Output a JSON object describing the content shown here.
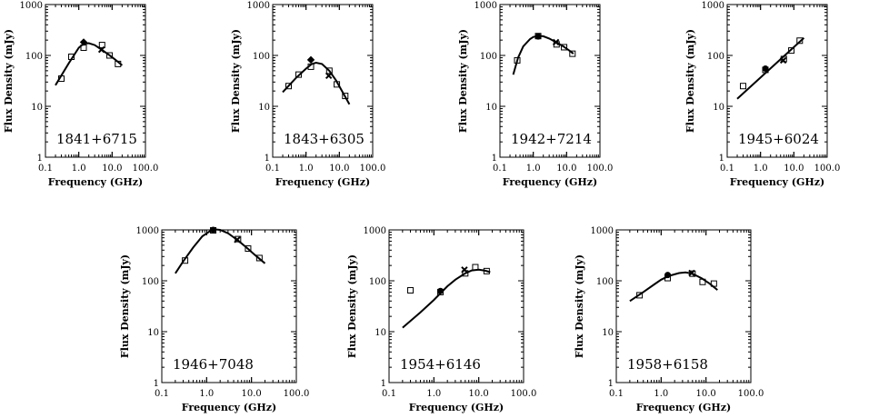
{
  "chart_data": [
    {
      "type": "scatter",
      "source": "1841+6715",
      "xlabel": "Frequency (GHz)",
      "ylabel": "Flux Density (mJy)",
      "x_scale": "log",
      "y_scale": "log",
      "xlim": [
        0.1,
        100.0
      ],
      "ylim": [
        1,
        1000
      ],
      "x_ticks": [
        "0.1",
        "1.0",
        "10.0",
        "100.0"
      ],
      "y_ticks": [
        "1",
        "10",
        "100",
        "1000"
      ],
      "fit_curve": [
        [
          0.2,
          26
        ],
        [
          0.5,
          70
        ],
        [
          1.0,
          142
        ],
        [
          1.4,
          170
        ],
        [
          2.0,
          174
        ],
        [
          3.0,
          160
        ],
        [
          5.0,
          128
        ],
        [
          8.0,
          103
        ],
        [
          12.0,
          84
        ],
        [
          20.0,
          64
        ]
      ],
      "markers": [
        {
          "shape": "square",
          "points": [
            [
              0.3,
              35
            ],
            [
              0.6,
              94
            ],
            [
              1.4,
              142
            ],
            [
              5.0,
              160
            ],
            [
              8.4,
              100
            ],
            [
              15.0,
              68
            ]
          ]
        },
        {
          "shape": "diamond",
          "points": [
            [
              1.4,
              182
            ]
          ]
        },
        {
          "shape": "cross",
          "points": [
            [
              4.8,
              130
            ]
          ]
        }
      ]
    },
    {
      "type": "scatter",
      "source": "1843+6305",
      "xlabel": "Frequency (GHz)",
      "ylabel": "Flux Density (mJy)",
      "x_scale": "log",
      "y_scale": "log",
      "xlim": [
        0.1,
        100.0
      ],
      "ylim": [
        1,
        1000
      ],
      "x_ticks": [
        "0.1",
        "1.0",
        "10.0",
        "100.0"
      ],
      "y_ticks": [
        "1",
        "10",
        "100",
        "1000"
      ],
      "fit_curve": [
        [
          0.2,
          19
        ],
        [
          0.5,
          36
        ],
        [
          1.0,
          55
        ],
        [
          1.5,
          68
        ],
        [
          2.0,
          72
        ],
        [
          3.0,
          68
        ],
        [
          5.0,
          50
        ],
        [
          8.0,
          32
        ],
        [
          12.0,
          20
        ],
        [
          20.0,
          11
        ]
      ],
      "markers": [
        {
          "shape": "square",
          "points": [
            [
              0.3,
              25
            ],
            [
              0.6,
              42
            ],
            [
              1.4,
              60
            ],
            [
              5.0,
              50
            ],
            [
              8.4,
              27
            ],
            [
              15.0,
              16
            ]
          ]
        },
        {
          "shape": "diamond",
          "points": [
            [
              1.4,
              82
            ]
          ]
        },
        {
          "shape": "cross",
          "points": [
            [
              4.8,
              40
            ]
          ]
        }
      ]
    },
    {
      "type": "scatter",
      "source": "1942+7214",
      "xlabel": "Frequency (GHz)",
      "ylabel": "Flux Density (mJy)",
      "x_scale": "log",
      "y_scale": "log",
      "xlim": [
        0.1,
        100.0
      ],
      "ylim": [
        1,
        1000
      ],
      "x_ticks": [
        "0.1",
        "1.0",
        "10.0",
        "100.0"
      ],
      "y_ticks": [
        "1",
        "10",
        "100",
        "1000"
      ],
      "fit_curve": [
        [
          0.25,
          42
        ],
        [
          0.35,
          90
        ],
        [
          0.5,
          150
        ],
        [
          0.8,
          210
        ],
        [
          1.0,
          230
        ],
        [
          1.5,
          242
        ],
        [
          2.0,
          238
        ],
        [
          3.0,
          215
        ],
        [
          5.0,
          180
        ],
        [
          8.0,
          150
        ],
        [
          12.0,
          125
        ],
        [
          16.0,
          108
        ]
      ],
      "markers": [
        {
          "shape": "square",
          "points": [
            [
              0.33,
              80
            ],
            [
              1.4,
              240
            ],
            [
              5.0,
              165
            ],
            [
              8.4,
              145
            ],
            [
              15.0,
              108
            ]
          ]
        },
        {
          "shape": "circle",
          "points": [
            [
              1.4,
              236
            ]
          ]
        },
        {
          "shape": "cross",
          "points": [
            [
              4.8,
              182
            ]
          ]
        }
      ]
    },
    {
      "type": "scatter",
      "source": "1945+6024",
      "xlabel": "Frequency (GHz)",
      "ylabel": "Flux Density (mJy)",
      "x_scale": "log",
      "y_scale": "log",
      "xlim": [
        0.1,
        100.0
      ],
      "ylim": [
        1,
        1000
      ],
      "x_ticks": [
        "0.1",
        "1.0",
        "10.0",
        "100.0"
      ],
      "y_ticks": [
        "1",
        "10",
        "100",
        "1000"
      ],
      "fit_curve": [
        [
          0.2,
          14
        ],
        [
          20.0,
          220
        ]
      ],
      "markers": [
        {
          "shape": "square",
          "points": [
            [
              0.3,
              25
            ],
            [
              1.4,
              52
            ],
            [
              5.0,
              85
            ],
            [
              8.4,
              125
            ],
            [
              15.0,
              195
            ]
          ]
        },
        {
          "shape": "circle",
          "points": [
            [
              1.4,
              55
            ]
          ]
        },
        {
          "shape": "cross",
          "points": [
            [
              4.8,
              80
            ]
          ]
        }
      ]
    },
    {
      "type": "scatter",
      "source": "1946+7048",
      "xlabel": "Frequency (GHz)",
      "ylabel": "Flux Density (mJy)",
      "x_scale": "log",
      "y_scale": "log",
      "xlim": [
        0.1,
        100.0
      ],
      "ylim": [
        1,
        1000
      ],
      "x_ticks": [
        "0.1",
        "1.0",
        "10.0",
        "100.0"
      ],
      "y_ticks": [
        "1",
        "10",
        "100",
        "1000"
      ],
      "fit_curve": [
        [
          0.2,
          140
        ],
        [
          0.3,
          240
        ],
        [
          0.5,
          450
        ],
        [
          0.8,
          750
        ],
        [
          1.2,
          950
        ],
        [
          1.6,
          1020
        ],
        [
          2.0,
          1000
        ],
        [
          3.0,
          860
        ],
        [
          5.0,
          620
        ],
        [
          8.0,
          440
        ],
        [
          12.0,
          320
        ],
        [
          20.0,
          220
        ]
      ],
      "markers": [
        {
          "shape": "square",
          "points": [
            [
              0.33,
              250
            ],
            [
              1.4,
              980
            ],
            [
              5.0,
              660
            ],
            [
              8.4,
              430
            ],
            [
              15.0,
              280
            ]
          ]
        },
        {
          "shape": "circle",
          "points": [
            [
              1.4,
              1000
            ]
          ]
        },
        {
          "shape": "cross",
          "points": [
            [
              4.8,
              640
            ]
          ]
        }
      ]
    },
    {
      "type": "scatter",
      "source": "1954+6146",
      "xlabel": "Frequency (GHz)",
      "ylabel": "Flux Density (mJy)",
      "x_scale": "log",
      "y_scale": "log",
      "xlim": [
        0.1,
        100.0
      ],
      "ylim": [
        1,
        1000
      ],
      "x_ticks": [
        "0.1",
        "1.0",
        "10.0",
        "100.0"
      ],
      "y_ticks": [
        "1",
        "10",
        "100",
        "1000"
      ],
      "fit_curve": [
        [
          0.2,
          12
        ],
        [
          0.5,
          24
        ],
        [
          1.0,
          42
        ],
        [
          2.0,
          78
        ],
        [
          3.0,
          105
        ],
        [
          5.0,
          140
        ],
        [
          7.0,
          160
        ],
        [
          10.0,
          165
        ],
        [
          14.0,
          158
        ],
        [
          18.0,
          148
        ]
      ],
      "markers": [
        {
          "shape": "square",
          "points": [
            [
              0.3,
              65
            ],
            [
              1.4,
              60
            ],
            [
              5.0,
              140
            ],
            [
              8.4,
              185
            ],
            [
              15.0,
              155
            ]
          ]
        },
        {
          "shape": "circle",
          "points": [
            [
              1.4,
              63
            ]
          ]
        },
        {
          "shape": "cross",
          "points": [
            [
              4.8,
              165
            ]
          ]
        }
      ]
    },
    {
      "type": "scatter",
      "source": "1958+6158",
      "xlabel": "Frequency (GHz)",
      "ylabel": "Flux Density (mJy)",
      "x_scale": "log",
      "y_scale": "log",
      "xlim": [
        0.1,
        100.0
      ],
      "ylim": [
        1,
        1000
      ],
      "x_ticks": [
        "0.1",
        "1.0",
        "10.0",
        "100.0"
      ],
      "y_ticks": [
        "1",
        "10",
        "100",
        "1000"
      ],
      "fit_curve": [
        [
          0.2,
          40
        ],
        [
          0.4,
          60
        ],
        [
          0.7,
          85
        ],
        [
          1.0,
          105
        ],
        [
          1.5,
          125
        ],
        [
          2.5,
          142
        ],
        [
          3.5,
          146
        ],
        [
          5.0,
          138
        ],
        [
          8.0,
          112
        ],
        [
          12.0,
          88
        ],
        [
          18.0,
          66
        ]
      ],
      "markers": [
        {
          "shape": "square",
          "points": [
            [
              0.33,
              52
            ],
            [
              1.4,
              113
            ],
            [
              5.0,
              138
            ],
            [
              8.4,
              95
            ],
            [
              15.0,
              88
            ]
          ]
        },
        {
          "shape": "circle",
          "points": [
            [
              1.4,
              130
            ]
          ]
        },
        {
          "shape": "cross",
          "points": [
            [
              4.8,
              142
            ]
          ]
        }
      ]
    }
  ]
}
